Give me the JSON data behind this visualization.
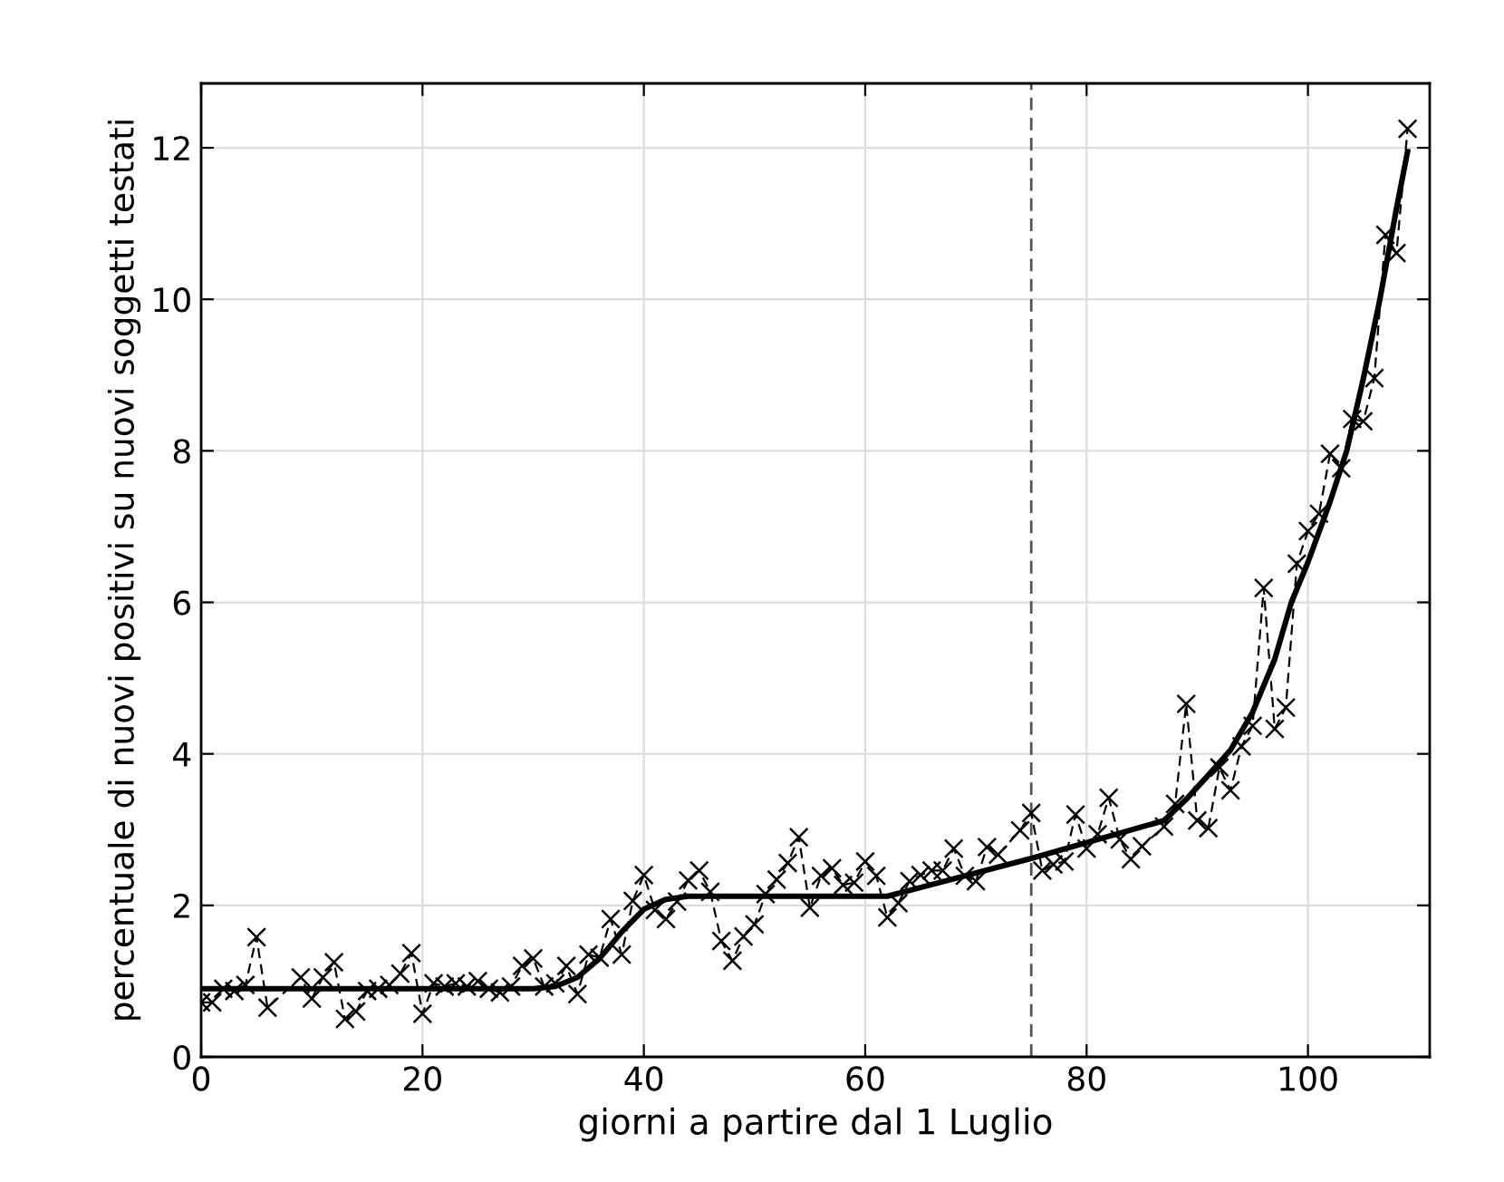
{
  "chart_data": {
    "type": "line",
    "xlabel": "giorni a partire dal 1 Luglio",
    "ylabel": "percentuale di nuovi positivi su nuovi soggetti testati",
    "xlim": [
      0,
      111
    ],
    "ylim": [
      0,
      12.85
    ],
    "xticks": [
      0,
      20,
      40,
      60,
      80,
      100
    ],
    "yticks": [
      0,
      2,
      4,
      6,
      8,
      10,
      12
    ],
    "grid": true,
    "ref_lines": [
      {
        "axis": "x",
        "value": 75,
        "label": null,
        "color": "#555555",
        "line_style": "dashed"
      }
    ],
    "series": [
      {
        "color": "#000000",
        "marker": "cross",
        "line_style": "dashed",
        "x": [
          0,
          1,
          2,
          3,
          4,
          5,
          6,
          9,
          10,
          11,
          12,
          13,
          14,
          15,
          16,
          17,
          18,
          19,
          20,
          21,
          22,
          23,
          24,
          25,
          26,
          27,
          28,
          29,
          30,
          31,
          32,
          33,
          34,
          35,
          36,
          37,
          38,
          39,
          40,
          41,
          42,
          43,
          44,
          45,
          46,
          47,
          48,
          49,
          50,
          51,
          52,
          53,
          54,
          55,
          56,
          57,
          58,
          59,
          60,
          61,
          62,
          63,
          64,
          65,
          66,
          67,
          68,
          69,
          70,
          71,
          72,
          74,
          75,
          76,
          77,
          78,
          79,
          80,
          81,
          82,
          83,
          84,
          85,
          87,
          88,
          89,
          90,
          91,
          92,
          93,
          94,
          95,
          96,
          97,
          98,
          99,
          100,
          101,
          102,
          103,
          104,
          105,
          106,
          107,
          108,
          109
        ],
        "values": [
          0.72,
          0.72,
          0.9,
          0.87,
          0.95,
          1.58,
          0.65,
          1.05,
          0.77,
          1.05,
          1.25,
          0.5,
          0.6,
          0.87,
          0.9,
          0.95,
          1.1,
          1.37,
          0.57,
          0.97,
          0.93,
          0.97,
          0.93,
          1.0,
          0.9,
          0.85,
          0.93,
          1.2,
          1.3,
          0.93,
          0.97,
          1.2,
          0.83,
          1.35,
          1.31,
          1.82,
          1.35,
          2.06,
          2.4,
          1.94,
          1.82,
          2.05,
          2.33,
          2.46,
          2.18,
          1.53,
          1.27,
          1.59,
          1.75,
          2.15,
          2.34,
          2.56,
          2.9,
          1.97,
          2.39,
          2.49,
          2.27,
          2.3,
          2.58,
          2.39,
          1.84,
          2.03,
          2.32,
          2.4,
          2.46,
          2.46,
          2.75,
          2.39,
          2.32,
          2.77,
          2.67,
          2.99,
          3.22,
          2.46,
          2.54,
          2.58,
          3.2,
          2.75,
          2.94,
          3.42,
          2.87,
          2.61,
          2.78,
          3.04,
          3.34,
          4.66,
          3.12,
          3.02,
          3.82,
          3.52,
          4.1,
          4.37,
          6.19,
          4.33,
          4.61,
          6.51,
          6.94,
          7.17,
          7.96,
          7.77,
          8.42,
          8.39,
          8.96,
          10.85,
          10.61,
          12.25
        ]
      },
      {
        "color": "#000000",
        "marker": "none",
        "line_style": "solid",
        "x": [
          0,
          30,
          32,
          34,
          36,
          38,
          40,
          42,
          44,
          62,
          75,
          87,
          89,
          91,
          93,
          95,
          97,
          98.5,
          100,
          102,
          103.5,
          105,
          106.5,
          108,
          109
        ],
        "values": [
          0.9,
          0.9,
          0.93,
          1.05,
          1.3,
          1.65,
          1.95,
          2.08,
          2.12,
          2.12,
          2.62,
          3.12,
          3.4,
          3.72,
          4.05,
          4.55,
          5.25,
          6.0,
          6.53,
          7.33,
          8.0,
          8.95,
          10.0,
          11.2,
          11.95
        ]
      }
    ]
  }
}
